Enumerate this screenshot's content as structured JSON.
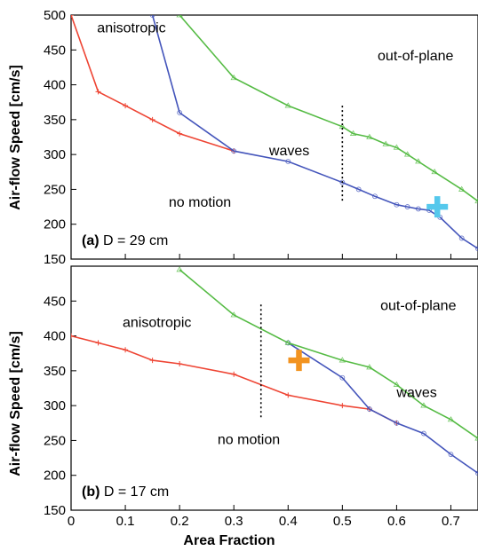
{
  "colors": {
    "anisotropic_boundary": "#ee4433",
    "waves_boundary": "#4455bb",
    "out_of_plane_boundary": "#55bb44",
    "marker_a": "#55c8ec",
    "marker_b": "#f29320"
  },
  "shared_x": {
    "label": "Area Fraction",
    "range": [
      0,
      0.75
    ],
    "ticks": [
      0,
      0.1,
      0.2,
      0.3,
      0.4,
      0.5,
      0.6,
      0.7
    ],
    "tick_labels": [
      "0",
      "0.1",
      "0.2",
      "0.3",
      "0.4",
      "0.5",
      "0.6",
      "0.7"
    ]
  },
  "shared_y": {
    "label": "Air-flow Speed  [cm/s]"
  },
  "chart_data": [
    {
      "type": "line",
      "panel": "(a)",
      "panel_label": "(a)",
      "subtitle": "D = 29 cm",
      "xlim": [
        0,
        0.75
      ],
      "ylim": [
        150,
        500
      ],
      "yticks": [
        150,
        200,
        250,
        300,
        350,
        400,
        450,
        500
      ],
      "ytick_labels": [
        "150",
        "200",
        "250",
        "300",
        "350",
        "400",
        "450",
        "500"
      ],
      "region_labels": [
        {
          "text": "anisotropic",
          "x": 0.048,
          "y": 475
        },
        {
          "text": "out-of-plane",
          "x": 0.565,
          "y": 435
        },
        {
          "text": "waves",
          "x": 0.365,
          "y": 299
        },
        {
          "text": "no motion",
          "x": 0.18,
          "y": 225
        }
      ],
      "series": [
        {
          "color_key": "anisotropic_boundary",
          "marker": "plus",
          "x": [
            0,
            0.05,
            0.1,
            0.15,
            0.2,
            0.3
          ],
          "y": [
            500,
            390,
            370,
            350,
            330,
            305
          ]
        },
        {
          "color_key": "waves_boundary",
          "marker": "circle",
          "x": [
            0.15,
            0.2,
            0.3,
            0.4,
            0.5,
            0.53,
            0.56,
            0.6,
            0.62,
            0.64,
            0.66,
            0.68,
            0.72,
            0.75
          ],
          "y": [
            500,
            360,
            305,
            290,
            260,
            250,
            240,
            228,
            225,
            222,
            220,
            210,
            180,
            165
          ]
        },
        {
          "color_key": "out_of_plane_boundary",
          "marker": "triangle",
          "x": [
            0.2,
            0.3,
            0.4,
            0.5,
            0.52,
            0.55,
            0.58,
            0.6,
            0.62,
            0.64,
            0.67,
            0.72,
            0.75
          ],
          "y": [
            500,
            410,
            370,
            340,
            330,
            325,
            315,
            310,
            300,
            290,
            275,
            250,
            233
          ]
        }
      ],
      "vline": {
        "x": 0.5,
        "y": [
          230,
          370
        ]
      },
      "marker": {
        "color_key": "marker_a",
        "x": 0.675,
        "y": 225
      }
    },
    {
      "type": "line",
      "panel": "(b)",
      "panel_label": "(b)",
      "subtitle": "D = 17 cm",
      "xlim": [
        0,
        0.75
      ],
      "ylim": [
        150,
        500
      ],
      "yticks": [
        150,
        200,
        250,
        300,
        350,
        400,
        450
      ],
      "ytick_labels": [
        "150",
        "200",
        "250",
        "300",
        "350",
        "400",
        "450"
      ],
      "region_labels": [
        {
          "text": "anisotropic",
          "x": 0.095,
          "y": 413
        },
        {
          "text": "out-of-plane",
          "x": 0.57,
          "y": 437
        },
        {
          "text": "waves",
          "x": 0.6,
          "y": 312
        },
        {
          "text": "no motion",
          "x": 0.27,
          "y": 245
        }
      ],
      "series": [
        {
          "color_key": "anisotropic_boundary",
          "marker": "plus",
          "x": [
            0,
            0.05,
            0.1,
            0.15,
            0.2,
            0.3,
            0.4,
            0.5,
            0.55,
            0.6
          ],
          "y": [
            400,
            390,
            380,
            365,
            360,
            345,
            315,
            300,
            295,
            275
          ]
        },
        {
          "color_key": "waves_boundary",
          "marker": "circle",
          "x": [
            0.4,
            0.5,
            0.55,
            0.6,
            0.65,
            0.7,
            0.75
          ],
          "y": [
            390,
            340,
            295,
            275,
            260,
            230,
            203
          ]
        },
        {
          "color_key": "out_of_plane_boundary",
          "marker": "triangle",
          "x": [
            0.2,
            0.3,
            0.4,
            0.5,
            0.55,
            0.6,
            0.65,
            0.7,
            0.75
          ],
          "y": [
            495,
            430,
            390,
            365,
            355,
            330,
            300,
            280,
            253
          ]
        }
      ],
      "vline": {
        "x": 0.35,
        "y": [
          280,
          445
        ]
      },
      "marker": {
        "color_key": "marker_b",
        "x": 0.42,
        "y": 365
      }
    }
  ]
}
